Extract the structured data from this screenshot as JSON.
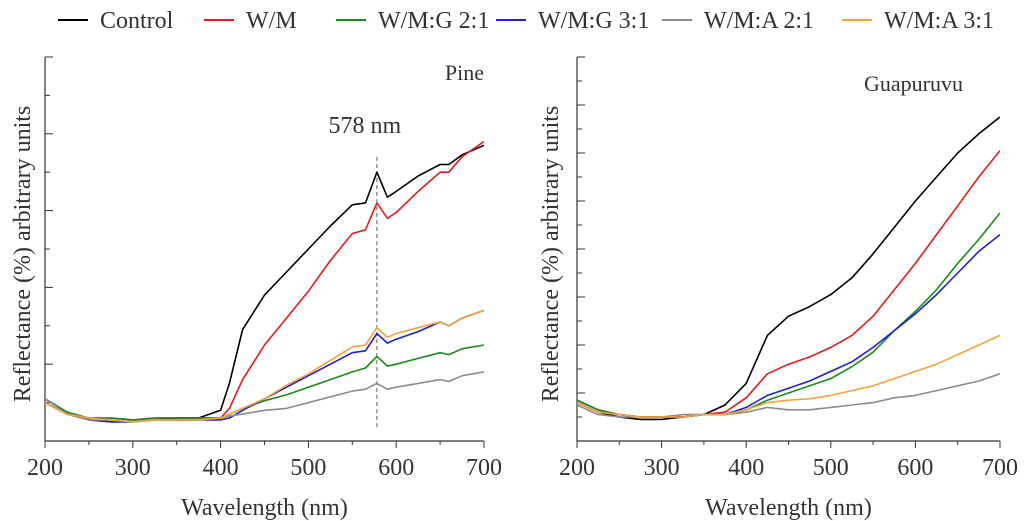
{
  "legend": [
    {
      "label": "Control",
      "color": "#000000"
    },
    {
      "label": "W/M",
      "color": "#e41a1c"
    },
    {
      "label": "W/M:G 2:1",
      "color": "#1a8a1a"
    },
    {
      "label": "W/M:G 3:1",
      "color": "#1f1fd6"
    },
    {
      "label": "W/M:A 2:1",
      "color": "#8c8c8c"
    },
    {
      "label": "W/M:A 3:1",
      "color": "#f4a23c"
    }
  ],
  "chart_data": [
    {
      "type": "line",
      "title": "Pine",
      "xlabel": "Wavelength (nm)",
      "ylabel": "Reflectance (%) arbitrary units",
      "xlim": [
        200,
        700
      ],
      "xticks": [
        200,
        300,
        400,
        500,
        600,
        700
      ],
      "ylim": [
        0,
        10
      ],
      "y_tick_labels_shown": false,
      "grid": false,
      "annotation": {
        "text": "578 nm",
        "x": 578
      },
      "x": [
        200,
        225,
        250,
        275,
        300,
        325,
        350,
        375,
        400,
        410,
        425,
        450,
        475,
        500,
        525,
        550,
        565,
        578,
        590,
        600,
        625,
        650,
        660,
        675,
        700
      ],
      "series": [
        {
          "name": "Control",
          "values": [
            1.1,
            0.75,
            0.55,
            0.5,
            0.5,
            0.55,
            0.6,
            0.6,
            0.8,
            1.5,
            2.9,
            3.8,
            4.4,
            5.0,
            5.6,
            6.15,
            6.2,
            7.0,
            6.35,
            6.5,
            6.9,
            7.2,
            7.2,
            7.45,
            7.7
          ]
        },
        {
          "name": "W/M",
          "values": [
            1.0,
            0.7,
            0.6,
            0.6,
            0.55,
            0.6,
            0.6,
            0.6,
            0.6,
            0.85,
            1.6,
            2.5,
            3.2,
            3.9,
            4.7,
            5.4,
            5.5,
            6.2,
            5.8,
            5.95,
            6.5,
            7.0,
            7.0,
            7.4,
            7.8
          ]
        },
        {
          "name": "W/M:G 2:1",
          "values": [
            1.1,
            0.75,
            0.6,
            0.6,
            0.55,
            0.6,
            0.6,
            0.6,
            0.6,
            0.7,
            0.85,
            1.05,
            1.2,
            1.4,
            1.6,
            1.8,
            1.9,
            2.2,
            1.95,
            2.0,
            2.15,
            2.3,
            2.25,
            2.4,
            2.5
          ]
        },
        {
          "name": "W/M:G 3:1",
          "values": [
            1.0,
            0.7,
            0.55,
            0.5,
            0.5,
            0.55,
            0.55,
            0.55,
            0.55,
            0.6,
            0.8,
            1.1,
            1.4,
            1.7,
            2.0,
            2.3,
            2.35,
            2.8,
            2.55,
            2.65,
            2.85,
            3.1,
            3.0,
            3.2,
            3.4
          ]
        },
        {
          "name": "W/M:A 2:1",
          "values": [
            1.1,
            0.7,
            0.55,
            0.55,
            0.5,
            0.55,
            0.55,
            0.55,
            0.6,
            0.65,
            0.7,
            0.8,
            0.85,
            1.0,
            1.15,
            1.3,
            1.35,
            1.5,
            1.35,
            1.4,
            1.5,
            1.6,
            1.55,
            1.7,
            1.8
          ]
        },
        {
          "name": "W/M:A 3:1",
          "values": [
            1.0,
            0.7,
            0.6,
            0.55,
            0.5,
            0.55,
            0.55,
            0.55,
            0.6,
            0.7,
            0.85,
            1.1,
            1.45,
            1.75,
            2.1,
            2.45,
            2.5,
            2.95,
            2.7,
            2.8,
            2.95,
            3.1,
            3.0,
            3.2,
            3.4
          ]
        }
      ]
    },
    {
      "type": "line",
      "title": "Guapuruvu",
      "xlabel": "Wavelength (nm)",
      "ylabel": "Reflectance (%) arbitrary units",
      "xlim": [
        200,
        700
      ],
      "xticks": [
        200,
        300,
        400,
        500,
        600,
        700
      ],
      "ylim": [
        0,
        8
      ],
      "y_tick_labels_shown": false,
      "grid": false,
      "x": [
        200,
        225,
        250,
        275,
        300,
        325,
        350,
        375,
        400,
        425,
        450,
        475,
        500,
        525,
        550,
        575,
        600,
        625,
        650,
        675,
        700
      ],
      "series": [
        {
          "name": "Control",
          "values": [
            0.8,
            0.6,
            0.5,
            0.45,
            0.45,
            0.5,
            0.55,
            0.75,
            1.2,
            2.2,
            2.6,
            2.8,
            3.05,
            3.4,
            3.9,
            4.45,
            5.0,
            5.5,
            6.0,
            6.4,
            6.75
          ]
        },
        {
          "name": "W/M",
          "values": [
            0.85,
            0.65,
            0.55,
            0.5,
            0.5,
            0.5,
            0.55,
            0.6,
            0.9,
            1.4,
            1.6,
            1.75,
            1.95,
            2.2,
            2.6,
            3.15,
            3.7,
            4.3,
            4.9,
            5.5,
            6.05
          ]
        },
        {
          "name": "W/M:G 2:1",
          "values": [
            0.85,
            0.65,
            0.55,
            0.5,
            0.5,
            0.5,
            0.55,
            0.55,
            0.65,
            0.85,
            1.0,
            1.15,
            1.3,
            1.55,
            1.85,
            2.3,
            2.7,
            3.15,
            3.7,
            4.2,
            4.75
          ]
        },
        {
          "name": "W/M:G 3:1",
          "values": [
            0.8,
            0.6,
            0.55,
            0.5,
            0.5,
            0.5,
            0.55,
            0.55,
            0.7,
            0.95,
            1.1,
            1.25,
            1.45,
            1.65,
            1.95,
            2.3,
            2.65,
            3.05,
            3.5,
            3.95,
            4.3
          ]
        },
        {
          "name": "W/M:A 2:1",
          "values": [
            0.75,
            0.55,
            0.5,
            0.5,
            0.5,
            0.55,
            0.55,
            0.55,
            0.6,
            0.7,
            0.65,
            0.65,
            0.7,
            0.75,
            0.8,
            0.9,
            0.95,
            1.05,
            1.15,
            1.25,
            1.4
          ]
        },
        {
          "name": "W/M:A 3:1",
          "values": [
            0.8,
            0.6,
            0.55,
            0.5,
            0.5,
            0.5,
            0.55,
            0.55,
            0.65,
            0.8,
            0.85,
            0.88,
            0.95,
            1.05,
            1.15,
            1.3,
            1.45,
            1.6,
            1.8,
            2.0,
            2.2
          ]
        }
      ]
    }
  ]
}
